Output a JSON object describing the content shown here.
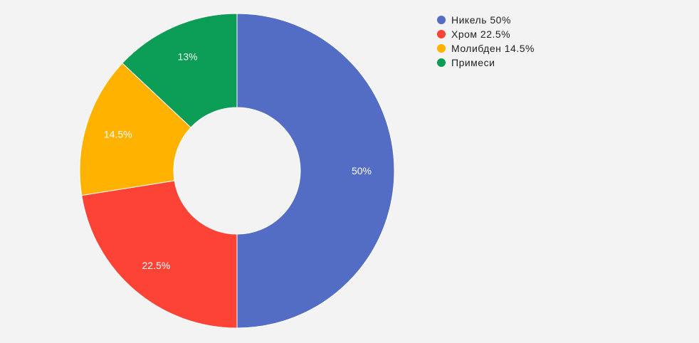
{
  "chart_data": {
    "type": "pie",
    "donut": true,
    "legend_position": "top-right",
    "slices": [
      {
        "name": "Никель 50%",
        "value": 50,
        "label": "50%",
        "color": "#536cc4"
      },
      {
        "name": "Хром 22.5%",
        "value": 22.5,
        "label": "22.5%",
        "color": "#fd4335"
      },
      {
        "name": "Молибден 14.5%",
        "value": 14.5,
        "label": "14.5%",
        "color": "#ffb300"
      },
      {
        "name": "Примеси",
        "value": 13,
        "label": "13%",
        "color": "#0b9c55"
      }
    ]
  }
}
